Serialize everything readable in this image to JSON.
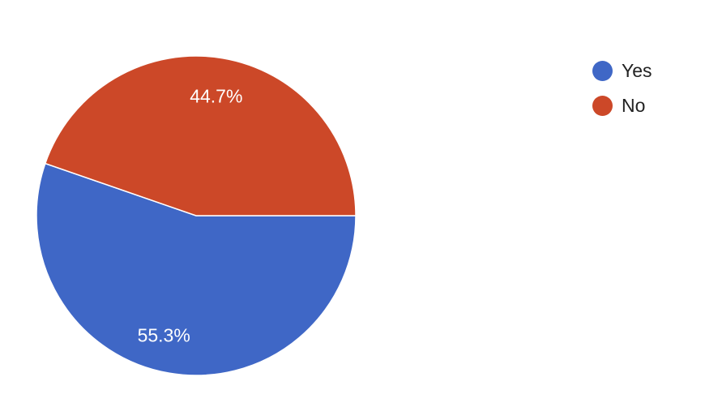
{
  "chart_data": {
    "type": "pie",
    "title": "",
    "legend_position": "right",
    "start_angle": "3 o'clock, clockwise",
    "slices": [
      {
        "label": "Yes",
        "value": 55.3,
        "data_label": "55.3%",
        "color": "#3F67C6"
      },
      {
        "label": "No",
        "value": 44.7,
        "data_label": "44.7%",
        "color": "#CC4828"
      }
    ]
  }
}
